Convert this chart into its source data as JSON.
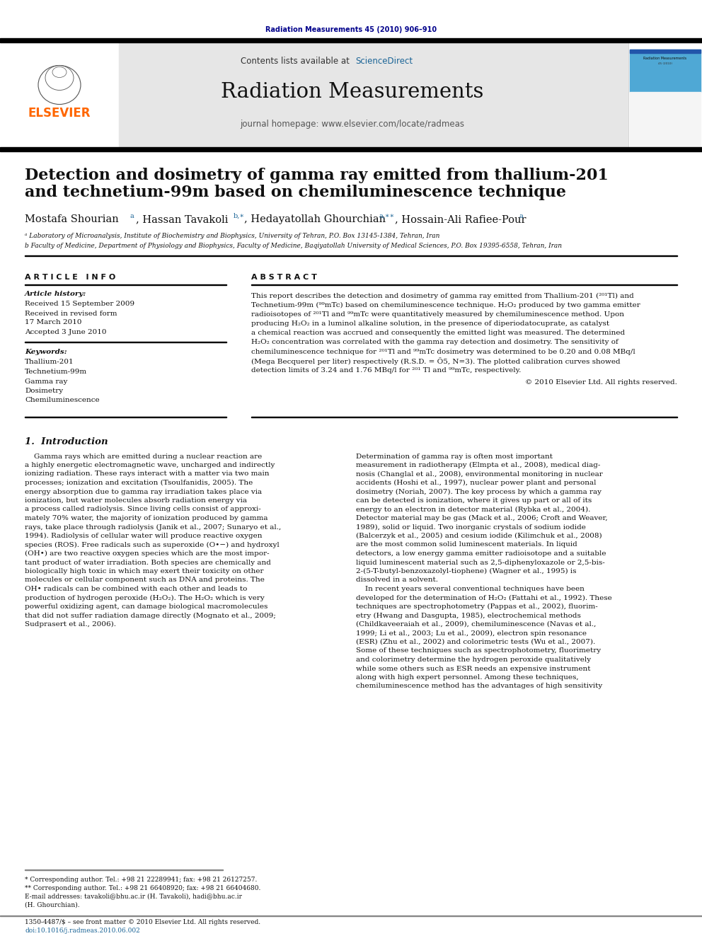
{
  "page_bg": "#ffffff",
  "top_citation": "Radiation Measurements 45 (2010) 906–910",
  "top_citation_color": "#00008B",
  "header_bg": "#e6e6e6",
  "sciencedirect_color": "#1a6496",
  "journal_name": "Radiation Measurements",
  "journal_url": "journal homepage: www.elsevier.com/locate/radmeas",
  "elsevier_color": "#FF6600",
  "article_title_line1": "Detection and dosimetry of gamma ray emitted from thallium-201",
  "article_title_line2": "and technetium-99m based on chemiluminescence technique",
  "affil_a": "ᵃ Laboratory of Microanalysis, Institute of Biochemistry and Biophysics, University of Tehran, P.O. Box 13145-1384, Tehran, Iran",
  "affil_b": "b Faculty of Medicine, Department of Physiology and Biophysics, Faculty of Medicine, Baqiyatollah University of Medical Sciences, P.O. Box 19395-6558, Tehran, Iran",
  "article_info_title": "A R T I C L E   I N F O",
  "article_history_title": "Article history:",
  "received1": "Received 15 September 2009",
  "received2": "Received in revised form",
  "received2b": "17 March 2010",
  "accepted": "Accepted 3 June 2010",
  "keywords_title": "Keywords:",
  "keywords": [
    "Thallium-201",
    "Technetium-99m",
    "Gamma ray",
    "Dosimetry",
    "Chemiluminescence"
  ],
  "abstract_title": "A B S T R A C T",
  "intro_title": "1.  Introduction",
  "footer_line1": "* Corresponding author. Tel.: +98 21 22289941; fax: +98 21 26127257.",
  "footer_line2": "** Corresponding author. Tel.: +98 21 66408920; fax: +98 21 66404680.",
  "footer_line3": "E-mail addresses: tavakoli@bhu.ac.ir (H. Tavakoli), hadi@bhu.ac.ir",
  "footer_line4": "(H. Ghourchian).",
  "footer_issn": "1350-4487/$ – see front matter © 2010 Elsevier Ltd. All rights reserved.",
  "footer_doi": "doi:10.1016/j.radmeas.2010.06.002",
  "link_color": "#1a6496",
  "black": "#000000",
  "separator_color": "#000000"
}
